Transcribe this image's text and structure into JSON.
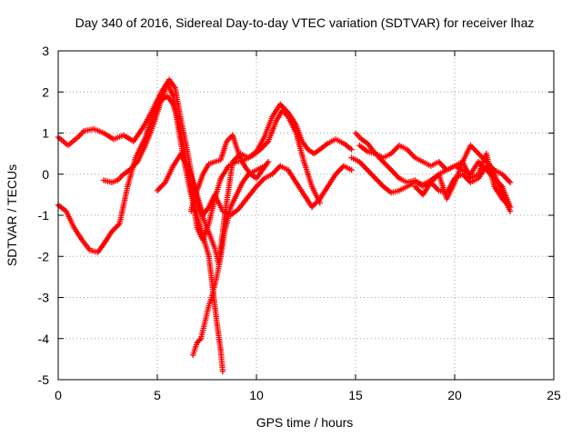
{
  "chart_data": {
    "type": "scatter",
    "title": "Day 340 of 2016, Sidereal Day-to-day VTEC variation (SDTVAR) for receiver lhaz",
    "xlabel": "GPS time / hours",
    "ylabel": "SDTVAR / TECUs",
    "xlim": [
      0,
      25
    ],
    "ylim": [
      -5,
      3
    ],
    "xticks": [
      0,
      5,
      10,
      15,
      20,
      25
    ],
    "yticks": [
      -5,
      -4,
      -3,
      -2,
      -1,
      0,
      1,
      2,
      3
    ],
    "grid": true,
    "marker": "+",
    "color": "#ff0000",
    "series": [
      {
        "name": "track-1",
        "x": [
          0.0,
          0.5,
          1.0,
          1.3,
          1.8,
          2.3,
          2.8,
          3.3,
          3.8,
          4.3,
          4.8,
          5.2,
          5.6,
          5.9,
          6.2,
          6.5,
          6.8,
          7.1,
          7.5,
          7.9,
          8.1,
          8.4,
          8.8,
          9.2,
          9.6,
          10.0,
          10.4,
          10.8,
          11.2,
          11.6,
          12.0,
          12.3,
          12.6,
          12.9,
          13.2,
          13.6,
          14.0,
          14.4,
          14.8
        ],
        "y": [
          0.9,
          0.7,
          0.9,
          1.05,
          1.1,
          1.0,
          0.85,
          0.95,
          0.8,
          1.15,
          1.6,
          2.0,
          2.3,
          2.1,
          1.3,
          0.6,
          -0.2,
          -0.8,
          -1.3,
          -1.8,
          -2.2,
          -1.0,
          0.3,
          0.5,
          0.4,
          0.55,
          0.9,
          1.4,
          1.7,
          1.5,
          1.2,
          0.8,
          0.6,
          0.5,
          0.6,
          0.75,
          0.85,
          0.75,
          0.6
        ]
      },
      {
        "name": "track-2",
        "x": [
          0.0,
          0.4,
          0.8,
          1.2,
          1.6,
          2.0,
          2.3,
          2.7,
          3.1,
          3.5,
          3.9,
          4.4,
          4.8,
          5.2,
          5.5,
          5.8,
          6.1,
          6.4,
          6.7,
          7.0,
          7.3,
          7.6,
          7.9,
          8.2,
          8.6,
          9.0,
          9.4,
          9.8,
          10.2,
          10.6,
          11.0,
          11.3,
          11.6,
          12.0,
          12.4,
          12.8,
          13.2
        ],
        "y": [
          -0.75,
          -0.9,
          -1.3,
          -1.6,
          -1.85,
          -1.9,
          -1.7,
          -1.4,
          -1.2,
          -0.3,
          0.4,
          0.9,
          1.5,
          1.8,
          1.9,
          1.7,
          1.2,
          0.5,
          -0.3,
          -1.3,
          -1.6,
          -1.2,
          -0.6,
          -0.1,
          0.2,
          0.3,
          0.35,
          0.45,
          0.6,
          0.8,
          1.3,
          1.55,
          1.4,
          1.0,
          0.3,
          -0.3,
          -0.7
        ]
      },
      {
        "name": "track-3",
        "x": [
          2.3,
          2.7,
          3.0,
          3.3,
          3.6,
          4.0,
          4.4,
          4.8,
          5.2,
          5.5,
          5.8,
          6.1,
          6.4,
          6.7,
          7.0,
          7.3,
          7.6,
          7.8,
          8.0,
          8.2,
          8.3
        ],
        "y": [
          -0.15,
          -0.2,
          -0.15,
          0.0,
          0.1,
          0.3,
          0.7,
          1.2,
          1.8,
          2.2,
          1.9,
          1.0,
          0.2,
          -0.5,
          -1.0,
          -1.5,
          -2.0,
          -2.8,
          -3.6,
          -4.3,
          -4.8
        ]
      },
      {
        "name": "track-4",
        "x": [
          5.0,
          5.4,
          5.8,
          6.2,
          6.6,
          7.0,
          7.3,
          7.6,
          7.9,
          8.3,
          8.7,
          9.1,
          9.5,
          10.0,
          10.4,
          10.8,
          11.2,
          11.6,
          12.0,
          12.4,
          12.8,
          13.2,
          13.6,
          14.0,
          14.4,
          14.8
        ],
        "y": [
          -0.4,
          -0.2,
          0.2,
          0.5,
          0.1,
          -0.5,
          -1.0,
          -0.8,
          -0.5,
          -0.9,
          -1.0,
          -0.85,
          -0.6,
          -0.3,
          -0.1,
          0.0,
          0.2,
          0.1,
          -0.2,
          -0.5,
          -0.8,
          -0.6,
          -0.3,
          0.0,
          0.2,
          0.1
        ]
      },
      {
        "name": "track-5",
        "x": [
          6.8,
          7.0,
          7.2,
          7.4,
          7.6,
          7.8,
          8.0,
          8.2,
          8.4,
          8.7,
          9.0,
          9.3,
          9.6,
          10.0,
          10.4
        ],
        "y": [
          -4.4,
          -4.1,
          -4.0,
          -3.6,
          -3.2,
          -2.9,
          -2.5,
          -2.0,
          -1.4,
          -0.8,
          -0.5,
          -0.2,
          0.0,
          0.1,
          0.2
        ]
      },
      {
        "name": "track-6",
        "x": [
          6.7,
          7.0,
          7.3,
          7.6,
          7.9,
          8.2,
          8.5,
          8.8,
          9.1,
          9.4,
          9.7,
          10.0,
          10.3,
          10.6
        ],
        "y": [
          -0.9,
          -0.4,
          0.0,
          0.25,
          0.3,
          0.35,
          0.8,
          0.95,
          0.5,
          0.2,
          0.0,
          -0.1,
          0.1,
          0.3
        ]
      },
      {
        "name": "track-7",
        "x": [
          15.0,
          15.3,
          15.6,
          16.0,
          16.4,
          16.8,
          17.2,
          17.6,
          18.0,
          18.4,
          18.8,
          19.2,
          19.6,
          20.0,
          20.4,
          20.8,
          21.2,
          21.6,
          22.0,
          22.4,
          22.8
        ],
        "y": [
          1.0,
          0.85,
          0.75,
          0.5,
          0.3,
          0.1,
          -0.1,
          -0.2,
          -0.15,
          -0.3,
          -0.2,
          -0.4,
          -0.45,
          -0.1,
          0.0,
          -0.2,
          -0.1,
          0.2,
          0.0,
          -0.5,
          -0.9
        ]
      },
      {
        "name": "track-8",
        "x": [
          14.8,
          15.2,
          15.6,
          16.0,
          16.4,
          16.8,
          17.2,
          17.6,
          18.0,
          18.4,
          18.8,
          19.2,
          19.6,
          20.0,
          20.4,
          20.8,
          21.2,
          21.6,
          22.0,
          22.4,
          22.8
        ],
        "y": [
          0.4,
          0.3,
          0.1,
          -0.1,
          -0.3,
          -0.45,
          -0.4,
          -0.3,
          -0.2,
          -0.25,
          -0.15,
          0.0,
          0.1,
          0.2,
          0.1,
          0.0,
          0.3,
          0.1,
          -0.1,
          -0.3,
          -0.8
        ]
      },
      {
        "name": "track-9",
        "x": [
          15.2,
          15.6,
          16.0,
          16.4,
          16.8,
          17.2,
          17.6,
          18.0,
          18.4,
          18.8,
          19.2,
          19.6,
          20.0,
          20.4,
          20.8,
          21.2,
          21.6,
          22.0,
          22.4,
          22.8
        ],
        "y": [
          0.7,
          0.55,
          0.5,
          0.4,
          0.5,
          0.7,
          0.6,
          0.4,
          0.3,
          0.2,
          0.3,
          0.1,
          0.2,
          0.3,
          0.7,
          0.5,
          0.3,
          0.1,
          0.0,
          -0.2
        ]
      },
      {
        "name": "track-10",
        "x": [
          18.0,
          18.4,
          18.8,
          19.2,
          19.6,
          20.0,
          20.4,
          20.8,
          21.2,
          21.6,
          22.0,
          22.4,
          22.8
        ],
        "y": [
          -0.3,
          -0.5,
          -0.2,
          0.0,
          -0.6,
          -0.2,
          0.3,
          -0.1,
          0.0,
          0.5,
          -0.3,
          -0.6,
          -0.8
        ]
      }
    ]
  }
}
